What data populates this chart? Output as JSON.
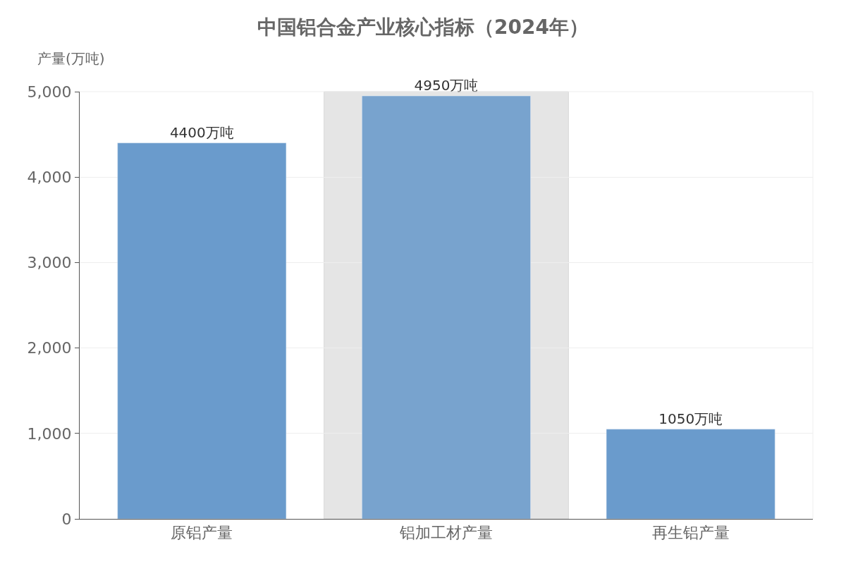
{
  "chart_data": {
    "type": "bar",
    "title": "中国铝合金产业核心指标（2024年）",
    "ylabel": "产量(万吨)",
    "categories": [
      "原铝产量",
      "铝加工材产量",
      "再生铝产量"
    ],
    "values": [
      4400,
      4950,
      1050
    ],
    "colors": [
      "#6a9bcc",
      "#78a3ce",
      "#6a9bcc"
    ],
    "value_labels": [
      "4400万吨",
      "4950万吨",
      "1050万吨"
    ],
    "ylim": [
      0,
      5000
    ],
    "yticks": [
      0,
      {
        "value": 1000,
        "label": "1,000"
      },
      {
        "value": 2000,
        "label": "2,000"
      },
      {
        "value": 3000,
        "label": "3,000"
      },
      {
        "value": 4000,
        "label": "4,000"
      },
      {
        "value": 5000,
        "label": "5,000"
      }
    ],
    "bands": [
      {
        "axis": "x",
        "from": "铝加工材产量",
        "to": "铝加工材产量",
        "color": "#e5e5e5"
      }
    ],
    "grid": "y"
  }
}
